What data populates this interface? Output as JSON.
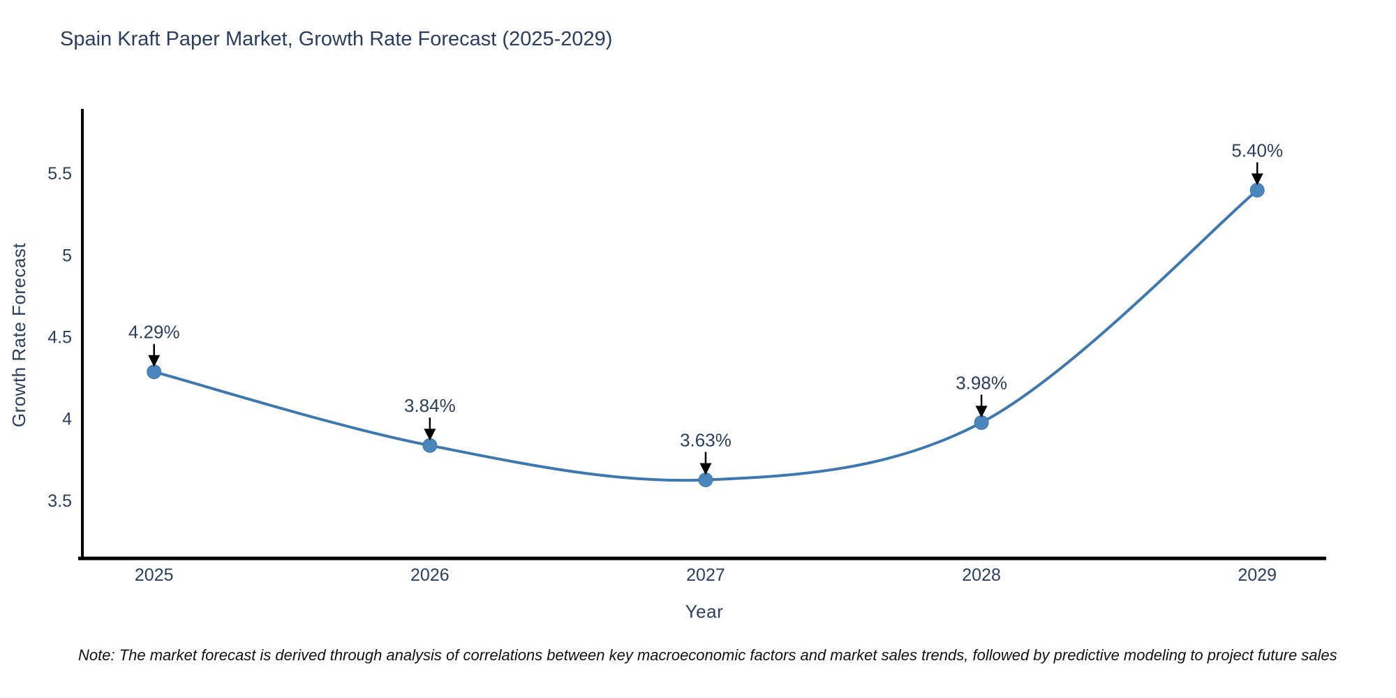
{
  "title": "Spain Kraft Paper Market, Growth Rate Forecast (2025-2029)",
  "note": "Note: The market forecast is derived through analysis of correlations between key macroeconomic factors and market sales trends, followed by predictive modeling to project future sales",
  "chart_data": {
    "type": "line",
    "line_shape": "spline",
    "title": "Spain Kraft Paper Market, Growth Rate Forecast (2025-2029)",
    "xlabel": "Year",
    "ylabel": "Growth Rate Forecast",
    "x": [
      2025,
      2026,
      2027,
      2028,
      2029
    ],
    "y": [
      4.29,
      3.84,
      3.63,
      3.98,
      5.4
    ],
    "point_labels": [
      "4.29%",
      "3.84%",
      "3.63%",
      "3.98%",
      "5.40%"
    ],
    "x_tick_labels": [
      "2025",
      "2026",
      "2027",
      "2028",
      "2029"
    ],
    "y_ticks": [
      3.5,
      4,
      4.5,
      5,
      5.5
    ],
    "y_tick_labels": [
      "3.5",
      "4",
      "4.5",
      "5",
      "5.5"
    ],
    "xlim": [
      2024.74,
      2029.25
    ],
    "ylim": [
      3.15,
      5.88
    ],
    "grid": false,
    "legend": false,
    "annotations_have_arrows": true,
    "colors": {
      "line": "#3d78b0",
      "marker_fill": "#4a86bb",
      "axis_line": "#000000",
      "chart_text": "#2a3f5f",
      "annotation_text": "#232c3d",
      "arrow": "#000000",
      "background": "#ffffff"
    }
  }
}
